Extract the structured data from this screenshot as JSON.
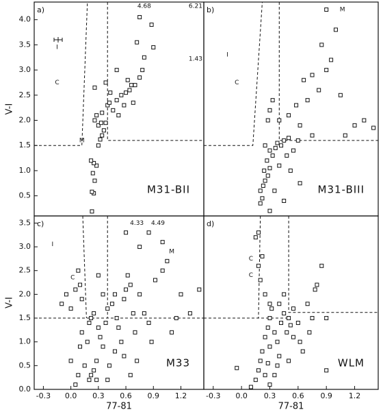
{
  "chart_data": [
    {
      "type": "scatter",
      "panel_label": "a)",
      "name": "M31-BII",
      "ylabel": "V-I",
      "color": "#111",
      "xlim": [
        -0.4,
        1.45
      ],
      "ylim": [
        0.1,
        4.35
      ],
      "yticks": [
        0.5,
        {
          "value": 1,
          "label": "1.0"
        },
        1.5,
        {
          "value": 2,
          "label": "2.0"
        },
        2.5,
        {
          "value": 3,
          "label": "3.0"
        },
        3.5,
        {
          "value": 4,
          "label": "4.0"
        }
      ],
      "x": [
        0.23,
        0.25,
        0.23,
        0.26,
        0.24,
        0.28,
        0.25,
        0.22,
        0.3,
        0.32,
        0.34,
        0.36,
        0.3,
        0.26,
        0.28,
        0.34,
        0.38,
        0.4,
        0.42,
        0.46,
        0.5,
        0.52,
        0.55,
        0.6,
        0.58,
        0.64,
        0.66,
        0.7,
        0.62,
        0.75,
        0.78,
        0.8,
        0.72,
        0.9,
        0.88,
        0.75,
        0.26,
        0.5,
        0.38,
        0.43,
        0.33,
        0.68
      ],
      "y": [
        0.19,
        0.55,
        0.58,
        0.8,
        0.95,
        1.1,
        1.15,
        1.2,
        1.5,
        1.62,
        1.7,
        1.8,
        1.9,
        2.0,
        2.1,
        2.15,
        1.95,
        2.3,
        2.35,
        2.2,
        2.4,
        2.1,
        2.5,
        2.55,
        2.3,
        2.6,
        2.7,
        2.7,
        2.8,
        2.85,
        3.0,
        3.25,
        3.55,
        3.45,
        3.9,
        4.05,
        2.65,
        3.0,
        2.75,
        2.55,
        1.95,
        2.35
      ],
      "lines": [
        {
          "x": [
            -0.4,
            0.12,
            0.18
          ],
          "y": [
            1.5,
            1.5,
            4.35
          ]
        },
        {
          "x": [
            0.4,
            0.4,
            1.45
          ],
          "y": [
            4.35,
            1.6,
            1.6
          ]
        }
      ],
      "annotations": [
        {
          "text": "4.68",
          "x": 0.8,
          "y": 4.27
        },
        {
          "text": "6.21",
          "x": 1.36,
          "y": 4.27
        },
        {
          "text": "1.43",
          "x": 1.36,
          "y": 3.22
        },
        {
          "text": "C",
          "x": -0.15,
          "y": 2.75
        },
        {
          "text": "I",
          "x": -0.15,
          "y": 3.45
        },
        {
          "text": "M",
          "x": 0.12,
          "y": 1.6
        }
      ]
    },
    {
      "type": "scatter",
      "panel_label": "b)",
      "name": "M31-BIII",
      "color": "#111",
      "xlim": [
        -0.4,
        1.45
      ],
      "ylim": [
        0.1,
        4.35
      ],
      "x": [
        0.2,
        0.22,
        0.2,
        0.23,
        0.25,
        0.28,
        0.24,
        0.3,
        0.27,
        0.33,
        0.3,
        0.36,
        0.25,
        0.38,
        0.42,
        0.45,
        0.5,
        0.55,
        0.6,
        0.48,
        0.52,
        0.4,
        0.35,
        0.3,
        0.4,
        0.33,
        0.3,
        0.5,
        0.58,
        0.62,
        0.7,
        0.66,
        0.75,
        0.82,
        0.9,
        0.85,
        0.95,
        1.0,
        1.05,
        1.2,
        1.3,
        1.4,
        0.9,
        1.1,
        0.62,
        0.45,
        0.75,
        0.28
      ],
      "y": [
        0.35,
        0.45,
        0.6,
        0.7,
        0.8,
        0.9,
        1.0,
        1.05,
        1.2,
        1.3,
        1.4,
        1.45,
        1.5,
        1.55,
        1.5,
        1.6,
        1.65,
        1.4,
        1.6,
        1.3,
        1.0,
        1.1,
        0.6,
        0.2,
        2.0,
        2.4,
        2.2,
        2.1,
        2.3,
        1.9,
        2.4,
        2.8,
        2.9,
        2.6,
        3.0,
        3.5,
        3.2,
        3.8,
        2.5,
        1.9,
        2.0,
        1.85,
        4.2,
        1.7,
        0.75,
        0.4,
        1.7,
        2.0
      ],
      "lines": [
        {
          "x": [
            -0.4,
            0.12,
            0.22
          ],
          "y": [
            1.5,
            1.5,
            4.35
          ]
        },
        {
          "x": [
            0.4,
            0.4,
            1.45
          ],
          "y": [
            4.35,
            1.6,
            1.6
          ]
        }
      ],
      "annotations": [
        {
          "text": "C",
          "x": -0.05,
          "y": 2.75
        },
        {
          "text": "I",
          "x": -0.15,
          "y": 3.3
        },
        {
          "text": "M",
          "x": 1.07,
          "y": 4.2
        }
      ]
    },
    {
      "type": "scatter",
      "panel_label": "c)",
      "name": "M33",
      "ylabel": "V-I",
      "xlabel": "77-81",
      "color": "#111",
      "xlim": [
        -0.4,
        1.45
      ],
      "ylim": [
        0,
        3.65
      ],
      "xticks": [
        -0.3,
        {
          "value": 0,
          "label": "0.0"
        },
        0.3,
        0.6,
        0.9,
        1.2
      ],
      "yticks": [
        {
          "value": 0,
          "label": "0.0"
        },
        0.5,
        {
          "value": 1,
          "label": "1.0"
        },
        1.5,
        {
          "value": 2,
          "label": "2.0"
        },
        2.5,
        {
          "value": 3,
          "label": "3.0"
        },
        3.5
      ],
      "x": [
        0.0,
        0.05,
        0.08,
        0.1,
        0.12,
        0.15,
        0.2,
        0.22,
        0.25,
        0.28,
        0.18,
        0.2,
        0.22,
        0.25,
        0.3,
        0.32,
        0.35,
        0.38,
        0.4,
        0.45,
        0.48,
        0.5,
        0.52,
        0.55,
        0.58,
        0.6,
        0.62,
        0.65,
        0.68,
        0.7,
        0.72,
        0.75,
        0.8,
        0.85,
        0.88,
        0.92,
        1.0,
        1.05,
        1.1,
        1.15,
        1.2,
        1.3,
        1.4,
        0.6,
        0.75,
        0.85,
        1.0,
        -0.1,
        -0.05,
        0.0,
        0.05,
        0.08,
        0.1,
        0.12,
        0.3,
        0.35,
        0.42,
        0.48,
        0.28,
        0.58,
        0.4,
        0.65
      ],
      "y": [
        0.6,
        0.1,
        0.3,
        0.9,
        1.2,
        0.5,
        0.2,
        0.3,
        0.4,
        0.6,
        1.0,
        1.4,
        1.5,
        1.6,
        1.3,
        1.1,
        0.9,
        1.4,
        1.7,
        1.8,
        2.0,
        1.5,
        1.3,
        1.0,
        1.9,
        2.1,
        2.4,
        2.2,
        1.6,
        1.2,
        0.6,
        2.0,
        1.6,
        1.4,
        1.0,
        2.3,
        2.5,
        2.7,
        1.2,
        1.5,
        2.0,
        1.6,
        2.1,
        3.3,
        3.0,
        3.3,
        3.1,
        1.8,
        2.0,
        1.7,
        2.1,
        2.5,
        2.2,
        1.9,
        2.4,
        2.0,
        0.5,
        0.8,
        0.2,
        0.7,
        0.2,
        0.3
      ],
      "lines": [
        {
          "x": [
            0.13,
            0.17
          ],
          "y": [
            3.65,
            1.5
          ]
        },
        {
          "x": [
            0.4,
            0.4
          ],
          "y": [
            3.65,
            1.5
          ]
        },
        {
          "x": [
            -0.4,
            1.45
          ],
          "y": [
            1.5,
            1.5
          ]
        }
      ],
      "annotations": [
        {
          "text": "4.33",
          "x": 0.72,
          "y": 3.5
        },
        {
          "text": "4.49",
          "x": 0.95,
          "y": 3.5
        },
        {
          "text": "I",
          "x": -0.2,
          "y": 3.05
        },
        {
          "text": "C",
          "x": 0.02,
          "y": 2.35
        },
        {
          "text": "M",
          "x": 1.1,
          "y": 2.9
        }
      ]
    },
    {
      "type": "scatter",
      "panel_label": "d)",
      "name": "WLM",
      "xlabel": "77-81",
      "color": "#111",
      "xlim": [
        -0.4,
        1.45
      ],
      "ylim": [
        0,
        3.65
      ],
      "xticks": [
        -0.3,
        {
          "value": 0,
          "label": "0.0"
        },
        0.3,
        0.6,
        0.9,
        1.2
      ],
      "x": [
        0.1,
        0.15,
        0.18,
        0.2,
        0.22,
        0.25,
        0.28,
        0.3,
        0.25,
        0.28,
        0.3,
        0.32,
        0.35,
        0.38,
        0.4,
        0.42,
        0.45,
        0.48,
        0.5,
        0.52,
        0.55,
        0.6,
        0.62,
        0.65,
        0.7,
        0.72,
        0.75,
        0.78,
        0.8,
        0.85,
        0.45,
        0.4,
        0.3,
        0.25,
        0.2,
        0.18,
        0.15,
        0.18,
        0.22,
        0.35,
        0.3,
        -0.05,
        0.5,
        0.38,
        0.55,
        0.9,
        0.9
      ],
      "y": [
        0.05,
        0.2,
        0.4,
        0.6,
        0.8,
        0.3,
        0.55,
        0.9,
        1.1,
        1.3,
        1.5,
        1.7,
        1.2,
        1.0,
        0.7,
        1.4,
        1.6,
        1.2,
        1.5,
        1.35,
        1.1,
        1.4,
        1.0,
        0.8,
        1.8,
        1.2,
        1.5,
        2.1,
        2.2,
        2.6,
        2.0,
        1.8,
        1.8,
        2.0,
        2.3,
        2.6,
        3.2,
        3.3,
        2.8,
        0.3,
        0.1,
        0.45,
        0.6,
        0.5,
        1.7,
        0.4,
        1.5
      ],
      "lines": [
        {
          "x": [
            0.2,
            0.18
          ],
          "y": [
            3.65,
            1.5
          ]
        },
        {
          "x": [
            0.5,
            0.5,
            1.45
          ],
          "y": [
            3.65,
            1.62,
            1.62
          ]
        },
        {
          "x": [
            -0.4,
            0.5
          ],
          "y": [
            1.5,
            1.5
          ]
        }
      ],
      "annotations": [
        {
          "text": "C",
          "x": 0.1,
          "y": 2.75
        },
        {
          "text": "C",
          "x": 0.1,
          "y": 2.4
        }
      ]
    }
  ]
}
